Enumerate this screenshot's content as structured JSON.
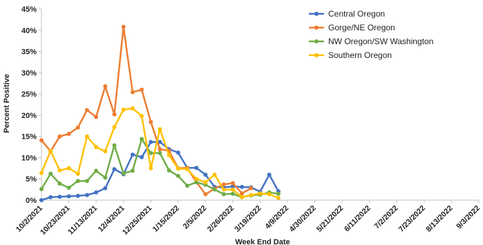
{
  "chart_data": {
    "type": "line",
    "xlabel": "Week End Date",
    "ylabel": "Percent Positive",
    "ylim": [
      0,
      45
    ],
    "yticks": [
      "0%",
      "5%",
      "10%",
      "15%",
      "20%",
      "25%",
      "30%",
      "35%",
      "40%",
      "45%"
    ],
    "xticks": [
      "10/2/2021",
      "10/23/2021",
      "11/13/2021",
      "12/4/2021",
      "12/25/2021",
      "1/15/2022",
      "2/5/2022",
      "2/26/2022",
      "3/19/2022",
      "4/9/2022",
      "4/30/2022",
      "5/21/2022",
      "6/11/2022",
      "7/2/2022",
      "7/23/2022",
      "8/13/2022",
      "9/3/2022"
    ],
    "grid": false,
    "legend_position": "top-right",
    "series": [
      {
        "name": "Central Oregon",
        "color": "#4472C4",
        "values": [
          0,
          0.7,
          0.8,
          0.9,
          1.0,
          1.2,
          1.8,
          2.8,
          7.3,
          6.1,
          10.7,
          10.1,
          13.7,
          13.7,
          12.0,
          11.2,
          7.6,
          7.6,
          6.0,
          3.1,
          3.0,
          3.2,
          3.1,
          3.0,
          2.0,
          6.0,
          2.1
        ]
      },
      {
        "name": "Gorge/NE Oregon",
        "color": "#ED7D31",
        "values": [
          14.1,
          11.5,
          15.0,
          15.6,
          17.1,
          21.2,
          19.6,
          26.8,
          20.2,
          40.8,
          25.4,
          26.0,
          18.4,
          12.0,
          11.6,
          7.5,
          7.6,
          4.2,
          1.4,
          2.7,
          3.7,
          4.0,
          1.6,
          2.8,
          null,
          null,
          null
        ]
      },
      {
        "name": "NW Oregon/SW Washington",
        "color": "#70AD47",
        "values": [
          2.6,
          6.2,
          3.9,
          2.9,
          4.5,
          4.5,
          6.9,
          5.3,
          12.9,
          6.3,
          6.9,
          14.4,
          11.1,
          11.1,
          7.0,
          5.7,
          3.4,
          4.2,
          3.6,
          2.5,
          1.4,
          1.5,
          0.7,
          1.1,
          1.3,
          1.8,
          1.5
        ]
      },
      {
        "name": "Southern Oregon",
        "color": "#FFC000",
        "values": [
          6.4,
          11.6,
          7.0,
          7.5,
          6.2,
          15.0,
          12.5,
          11.5,
          17.2,
          21.3,
          21.6,
          19.8,
          7.5,
          16.7,
          10.6,
          7.4,
          7.3,
          5.0,
          4.2,
          6.0,
          2.5,
          2.5,
          0.7,
          1.2,
          1.6,
          1.4,
          0.5
        ]
      }
    ]
  }
}
